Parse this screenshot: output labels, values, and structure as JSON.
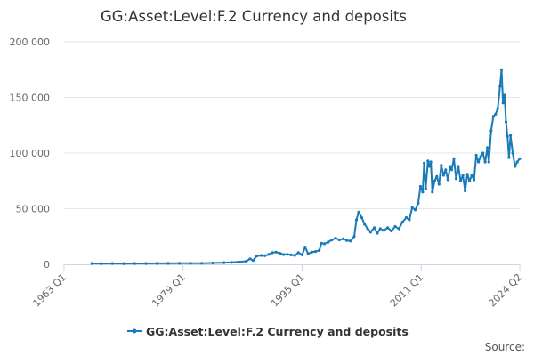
{
  "chart_data": {
    "type": "line",
    "title": "GG:Asset:Level:F.2 Currency and deposits",
    "xlabel": "",
    "ylabel": "",
    "x_tick_labels": [
      "1963 Q1",
      "1979 Q1",
      "1995 Q1",
      "2011 Q1",
      "2024 Q2"
    ],
    "y_tick_labels": [
      "0",
      "50 000",
      "100 000",
      "150 000",
      "200 000"
    ],
    "y_ticks": [
      0,
      50000,
      100000,
      150000,
      200000
    ],
    "ylim": [
      0,
      200000
    ],
    "xlim": [
      1963.0,
      2024.25
    ],
    "x_ticks": [
      1963.0,
      1979.0,
      1995.0,
      2011.0,
      2024.25
    ],
    "legend_position": "bottom",
    "grid": true,
    "series": [
      {
        "name": "GG:Asset:Level:F.2 Currency and deposits",
        "color": "#1a7ab8",
        "points": [
          [
            1966.75,
            800
          ],
          [
            1968.0,
            700
          ],
          [
            1969.5,
            800
          ],
          [
            1971.0,
            700
          ],
          [
            1972.5,
            800
          ],
          [
            1974.0,
            800
          ],
          [
            1975.5,
            900
          ],
          [
            1977.0,
            900
          ],
          [
            1978.5,
            1000
          ],
          [
            1980.0,
            1000
          ],
          [
            1981.5,
            1000
          ],
          [
            1983.0,
            1200
          ],
          [
            1984.5,
            1500
          ],
          [
            1985.5,
            1800
          ],
          [
            1986.5,
            2200
          ],
          [
            1987.5,
            2800
          ],
          [
            1988.0,
            5000
          ],
          [
            1988.4,
            3500
          ],
          [
            1988.9,
            7500
          ],
          [
            1989.5,
            8000
          ],
          [
            1990.0,
            7800
          ],
          [
            1990.5,
            9000
          ],
          [
            1991.0,
            10500
          ],
          [
            1991.5,
            11000
          ],
          [
            1992.0,
            10000
          ],
          [
            1992.5,
            8800
          ],
          [
            1993.0,
            9000
          ],
          [
            1993.5,
            8500
          ],
          [
            1994.0,
            8000
          ],
          [
            1994.5,
            10500
          ],
          [
            1995.0,
            8500
          ],
          [
            1995.4,
            15500
          ],
          [
            1995.8,
            9500
          ],
          [
            1996.3,
            11000
          ],
          [
            1996.8,
            11500
          ],
          [
            1997.3,
            12500
          ],
          [
            1997.6,
            19000
          ],
          [
            1998.0,
            18500
          ],
          [
            1998.5,
            20000
          ],
          [
            1999.0,
            22000
          ],
          [
            1999.5,
            23500
          ],
          [
            2000.0,
            22000
          ],
          [
            2000.5,
            23000
          ],
          [
            2001.0,
            21500
          ],
          [
            2001.5,
            21000
          ],
          [
            2002.0,
            25000
          ],
          [
            2002.3,
            40000
          ],
          [
            2002.6,
            47000
          ],
          [
            2003.0,
            42000
          ],
          [
            2003.4,
            36000
          ],
          [
            2003.8,
            32000
          ],
          [
            2004.2,
            29000
          ],
          [
            2004.7,
            33000
          ],
          [
            2005.1,
            28000
          ],
          [
            2005.5,
            32000
          ],
          [
            2006.0,
            30500
          ],
          [
            2006.5,
            33000
          ],
          [
            2007.0,
            30000
          ],
          [
            2007.5,
            34000
          ],
          [
            2008.0,
            32000
          ],
          [
            2008.5,
            38000
          ],
          [
            2009.0,
            42000
          ],
          [
            2009.4,
            40000
          ],
          [
            2009.8,
            51000
          ],
          [
            2010.2,
            49000
          ],
          [
            2010.6,
            55000
          ],
          [
            2010.9,
            70000
          ],
          [
            2011.2,
            65000
          ],
          [
            2011.4,
            91000
          ],
          [
            2011.6,
            68000
          ],
          [
            2011.9,
            93000
          ],
          [
            2012.1,
            88000
          ],
          [
            2012.3,
            92000
          ],
          [
            2012.5,
            65000
          ],
          [
            2012.8,
            75000
          ],
          [
            2013.1,
            79000
          ],
          [
            2013.4,
            72000
          ],
          [
            2013.7,
            89000
          ],
          [
            2014.0,
            80000
          ],
          [
            2014.3,
            85000
          ],
          [
            2014.6,
            76000
          ],
          [
            2014.9,
            88000
          ],
          [
            2015.1,
            85000
          ],
          [
            2015.4,
            95000
          ],
          [
            2015.7,
            77000
          ],
          [
            2016.0,
            88000
          ],
          [
            2016.3,
            75000
          ],
          [
            2016.6,
            80000
          ],
          [
            2016.9,
            66000
          ],
          [
            2017.2,
            81000
          ],
          [
            2017.5,
            75000
          ],
          [
            2017.8,
            80000
          ],
          [
            2018.1,
            76000
          ],
          [
            2018.4,
            98000
          ],
          [
            2018.7,
            92000
          ],
          [
            2019.0,
            97000
          ],
          [
            2019.3,
            100000
          ],
          [
            2019.6,
            92000
          ],
          [
            2019.9,
            105000
          ],
          [
            2020.1,
            92000
          ],
          [
            2020.4,
            120000
          ],
          [
            2020.7,
            133000
          ],
          [
            2021.0,
            135000
          ],
          [
            2021.3,
            140000
          ],
          [
            2021.6,
            160000
          ],
          [
            2021.8,
            175000
          ],
          [
            2022.0,
            145000
          ],
          [
            2022.2,
            152000
          ],
          [
            2022.4,
            128000
          ],
          [
            2022.6,
            115000
          ],
          [
            2022.8,
            96000
          ],
          [
            2023.0,
            116000
          ],
          [
            2023.3,
            100000
          ],
          [
            2023.6,
            88000
          ],
          [
            2023.9,
            92000
          ],
          [
            2024.25,
            95000
          ]
        ]
      }
    ]
  },
  "source_label": "Source:"
}
